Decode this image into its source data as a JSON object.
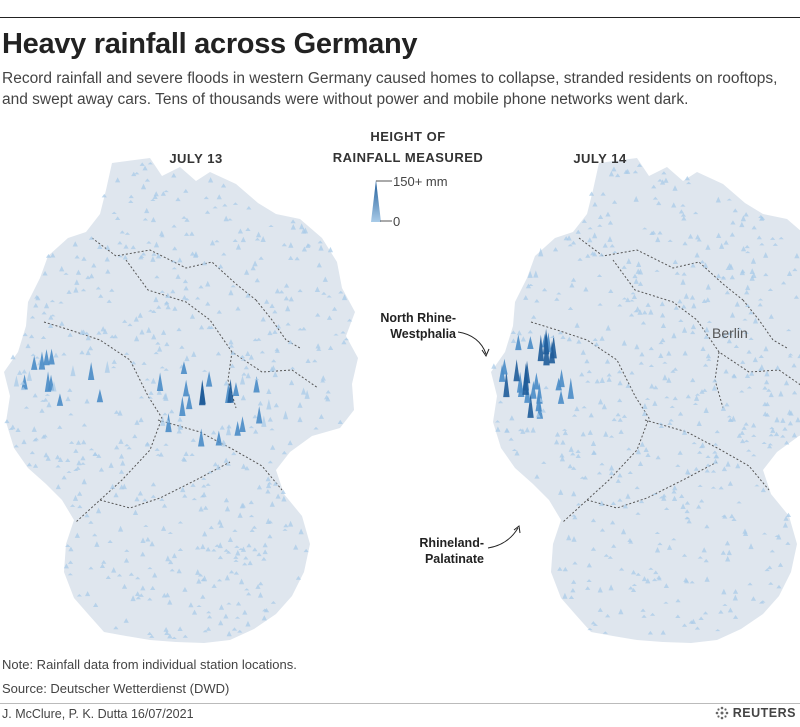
{
  "title": "Heavy rainfall across Germany",
  "subtitle": "Record rainfall and severe floods in western Germany caused homes to collapse, stranded residents on rooftops, and swept away cars. Tens of thousands were without power and mobile phone networks went dark.",
  "maps": [
    {
      "date": "JULY 13"
    },
    {
      "date": "JULY 14"
    }
  ],
  "legend": {
    "title_line1": "HEIGHT OF",
    "title_line2": "RAINFALL MEASURED",
    "max_label": "150+ mm",
    "min_label": "0"
  },
  "annotations": {
    "nrw_line1": "North Rhine-",
    "nrw_line2": "Westphalia",
    "rp_line1": "Rhineland-",
    "rp_line2": "Palatinate",
    "city": "Berlin"
  },
  "note": "Note: Rainfall data from individual station locations.",
  "source": "Source: Deutscher Wetterdienst (DWD)",
  "credit": "J. McClure, P. K. Dutta 16/07/2021",
  "brand": "REUTERS",
  "colors": {
    "land": "#dfe6ee",
    "border": "#555555",
    "rain_light": "#a9cbe8",
    "rain_mid": "#5b9bd0",
    "rain_dark": "#1f5c99"
  }
}
